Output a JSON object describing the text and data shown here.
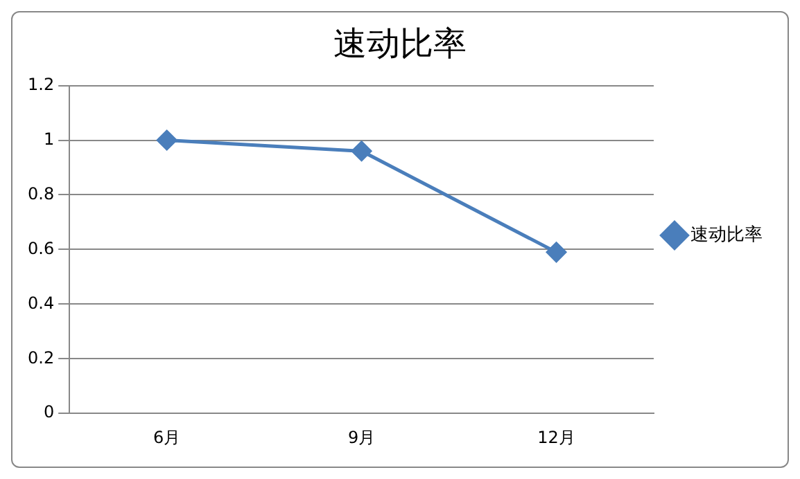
{
  "chart_data": {
    "type": "line",
    "title": "速动比率",
    "categories": [
      "6月",
      "9月",
      "12月"
    ],
    "series": [
      {
        "name": "速动比率",
        "color": "#4a7ebb",
        "values": [
          1.0,
          0.96,
          0.59
        ]
      }
    ],
    "ylim": [
      0,
      1.2
    ],
    "yticks": [
      0,
      0.2,
      0.4,
      0.6,
      0.8,
      1,
      1.2
    ],
    "grid": "y",
    "legend": "right",
    "marker": "diamond",
    "line_style": "solid"
  }
}
